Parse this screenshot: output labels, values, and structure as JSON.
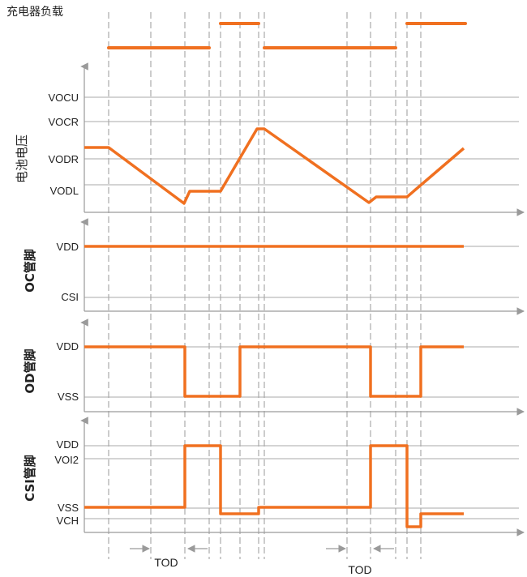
{
  "header": {
    "title": "充电器负载"
  },
  "panels": {
    "battery_voltage": {
      "axis_label": "电池电压",
      "levels": {
        "vocu": "VOCU",
        "vocr": "VOCR",
        "vodr": "VODR",
        "vodl": "VODL"
      }
    },
    "oc_pin": {
      "axis_label": "OC管脚",
      "levels": {
        "vdd": "VDD",
        "csi": "CSI"
      }
    },
    "od_pin": {
      "axis_label": "OD管脚",
      "levels": {
        "vdd": "VDD",
        "vss": "VSS"
      }
    },
    "csi_pin": {
      "axis_label": "CSI管脚",
      "levels": {
        "vdd": "VDD",
        "voi2": "VOI2",
        "vss": "VSS",
        "vch": "VCH"
      }
    }
  },
  "annotations": {
    "tod_1": "TOD",
    "tod_2": "TOD"
  },
  "colors": {
    "signal": "#f07020",
    "grid": "#999999",
    "axis": "#9a9a9a",
    "text": "#222222"
  }
}
